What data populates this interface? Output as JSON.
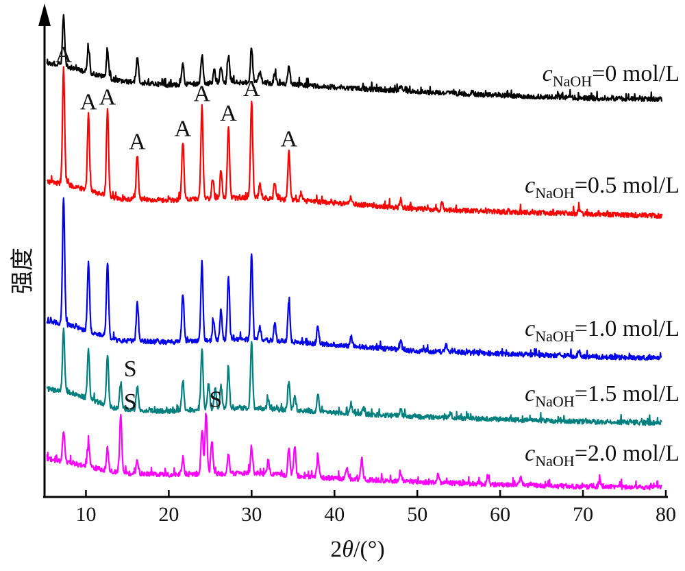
{
  "chart_data": {
    "type": "line",
    "xlabel": "2θ/(°)",
    "xlabel_parts": {
      "prefix": "2",
      "italic": "θ",
      "suffix": "/(°)"
    },
    "ylabel": "强度",
    "xlim": [
      5,
      80
    ],
    "x_ticks": [
      "10",
      "20",
      "30",
      "40",
      "50",
      "60",
      "70",
      "80"
    ],
    "grid": false,
    "series": [
      {
        "name": "cNaOH=0 mol/L",
        "label": {
          "c": "c",
          "sub": "NaOH",
          "rest": "=0 mol/L"
        },
        "color": "#000000",
        "baseline": [
          [
            5,
            91
          ],
          [
            8,
            98
          ],
          [
            14,
            118
          ],
          [
            20,
            124
          ],
          [
            30,
            120
          ],
          [
            40,
            127
          ],
          [
            50,
            134
          ],
          [
            60,
            139
          ],
          [
            70,
            143
          ],
          [
            80,
            145
          ]
        ],
        "peaks": [
          [
            7.3,
            75
          ],
          [
            10.3,
            35
          ],
          [
            12.6,
            40
          ],
          [
            16.2,
            35
          ],
          [
            21.7,
            30
          ],
          [
            24.0,
            42
          ],
          [
            25.5,
            20
          ],
          [
            26.3,
            25
          ],
          [
            27.2,
            40
          ],
          [
            30.0,
            50
          ],
          [
            31.0,
            15
          ],
          [
            32.8,
            15
          ],
          [
            34.5,
            28
          ],
          [
            48.0,
            8
          ]
        ]
      },
      {
        "name": "cNaOH=0.5 mol/L",
        "label": {
          "c": "c",
          "sub": "NaOH",
          "rest": "=0.5 mol/L"
        },
        "color": "#ff0000",
        "baseline": [
          [
            5,
            264
          ],
          [
            8,
            270
          ],
          [
            14,
            290
          ],
          [
            20,
            292
          ],
          [
            30,
            288
          ],
          [
            40,
            296
          ],
          [
            50,
            305
          ],
          [
            60,
            309
          ],
          [
            70,
            312
          ],
          [
            80,
            315
          ]
        ],
        "peaks": [
          [
            7.3,
            170
          ],
          [
            10.3,
            110
          ],
          [
            12.6,
            125
          ],
          [
            16.2,
            65
          ],
          [
            21.7,
            85
          ],
          [
            24.0,
            135
          ],
          [
            25.3,
            30
          ],
          [
            26.3,
            40
          ],
          [
            27.2,
            105
          ],
          [
            30.0,
            140
          ],
          [
            31.0,
            20
          ],
          [
            32.8,
            25
          ],
          [
            34.5,
            70
          ],
          [
            36.0,
            12
          ],
          [
            42.0,
            10
          ],
          [
            48.0,
            12
          ],
          [
            53.0,
            10
          ],
          [
            69.5,
            8
          ]
        ]
      },
      {
        "name": "cNaOH=1.0 mol/L",
        "label": {
          "c": "c",
          "sub": "NaOH",
          "rest": "=1.0 mol/L"
        },
        "color": "#0000ee",
        "baseline": [
          [
            5,
            467
          ],
          [
            8,
            474
          ],
          [
            14,
            497
          ],
          [
            20,
            499
          ],
          [
            30,
            495
          ],
          [
            40,
            503
          ],
          [
            50,
            512
          ],
          [
            60,
            516
          ],
          [
            70,
            520
          ],
          [
            80,
            523
          ]
        ],
        "peaks": [
          [
            7.3,
            185
          ],
          [
            10.3,
            100
          ],
          [
            12.6,
            110
          ],
          [
            16.2,
            55
          ],
          [
            21.7,
            70
          ],
          [
            24.0,
            115
          ],
          [
            25.4,
            30
          ],
          [
            26.3,
            45
          ],
          [
            27.2,
            90
          ],
          [
            30.0,
            125
          ],
          [
            31.0,
            20
          ],
          [
            32.8,
            25
          ],
          [
            34.5,
            60
          ],
          [
            38.0,
            25
          ],
          [
            42.0,
            15
          ],
          [
            48.0,
            12
          ],
          [
            53.5,
            10
          ],
          [
            69.5,
            8
          ]
        ]
      },
      {
        "name": "cNaOH=1.5 mol/L",
        "label": {
          "c": "c",
          "sub": "NaOH",
          "rest": "=1.5 mol/L"
        },
        "color": "#007f7f",
        "baseline": [
          [
            5,
            567
          ],
          [
            8,
            572
          ],
          [
            14,
            597
          ],
          [
            20,
            600
          ],
          [
            30,
            595
          ],
          [
            40,
            602
          ],
          [
            50,
            608
          ],
          [
            60,
            612
          ],
          [
            70,
            615
          ],
          [
            80,
            617
          ]
        ],
        "peaks": [
          [
            7.3,
            90
          ],
          [
            10.3,
            70
          ],
          [
            12.6,
            75
          ],
          [
            14.2,
            40
          ],
          [
            16.2,
            35
          ],
          [
            21.7,
            45
          ],
          [
            24.0,
            90
          ],
          [
            24.8,
            40
          ],
          [
            25.6,
            30
          ],
          [
            26.3,
            35
          ],
          [
            27.2,
            60
          ],
          [
            30.0,
            95
          ],
          [
            32.0,
            15
          ],
          [
            34.5,
            40
          ],
          [
            35.2,
            20
          ],
          [
            38.0,
            25
          ],
          [
            42.0,
            12
          ],
          [
            43.5,
            10
          ],
          [
            48.0,
            10
          ],
          [
            54.0,
            8
          ]
        ]
      },
      {
        "name": "cNaOH=2.0 mol/L",
        "label": {
          "c": "c",
          "sub": "NaOH",
          "rest": "=2.0 mol/L"
        },
        "color": "#ff00ff",
        "baseline": [
          [
            5,
            668
          ],
          [
            8,
            675
          ],
          [
            14,
            690
          ],
          [
            20,
            693
          ],
          [
            30,
            690
          ],
          [
            40,
            698
          ],
          [
            50,
            703
          ],
          [
            60,
            707
          ],
          [
            70,
            710
          ],
          [
            80,
            711
          ]
        ],
        "peaks": [
          [
            7.3,
            45
          ],
          [
            10.3,
            35
          ],
          [
            12.6,
            32
          ],
          [
            14.2,
            85
          ],
          [
            16.2,
            20
          ],
          [
            21.7,
            25
          ],
          [
            24.0,
            65
          ],
          [
            24.5,
            90
          ],
          [
            25.2,
            50
          ],
          [
            27.2,
            30
          ],
          [
            30.0,
            35
          ],
          [
            32.0,
            20
          ],
          [
            34.5,
            40
          ],
          [
            35.2,
            45
          ],
          [
            38.0,
            30
          ],
          [
            41.5,
            15
          ],
          [
            43.3,
            30
          ],
          [
            48.0,
            12
          ],
          [
            52.5,
            12
          ],
          [
            58.5,
            12
          ],
          [
            62.5,
            10
          ],
          [
            72.0,
            8
          ]
        ]
      }
    ],
    "annotations": [
      {
        "text": "A",
        "x": 7.3,
        "series": 1
      },
      {
        "text": "A",
        "x": 10.3,
        "series": 1
      },
      {
        "text": "A",
        "x": 12.6,
        "series": 1
      },
      {
        "text": "A",
        "x": 16.2,
        "series": 1
      },
      {
        "text": "A",
        "x": 21.7,
        "series": 1
      },
      {
        "text": "A",
        "x": 24.0,
        "series": 1
      },
      {
        "text": "A",
        "x": 27.2,
        "series": 1
      },
      {
        "text": "A",
        "x": 30.0,
        "series": 1
      },
      {
        "text": "A",
        "x": 34.5,
        "series": 1
      },
      {
        "text": "S",
        "x": 14.2,
        "series": 3
      },
      {
        "text": "S",
        "x": 14.2,
        "series": 4
      },
      {
        "text": "S",
        "x": 24.5,
        "series": 4
      }
    ]
  }
}
